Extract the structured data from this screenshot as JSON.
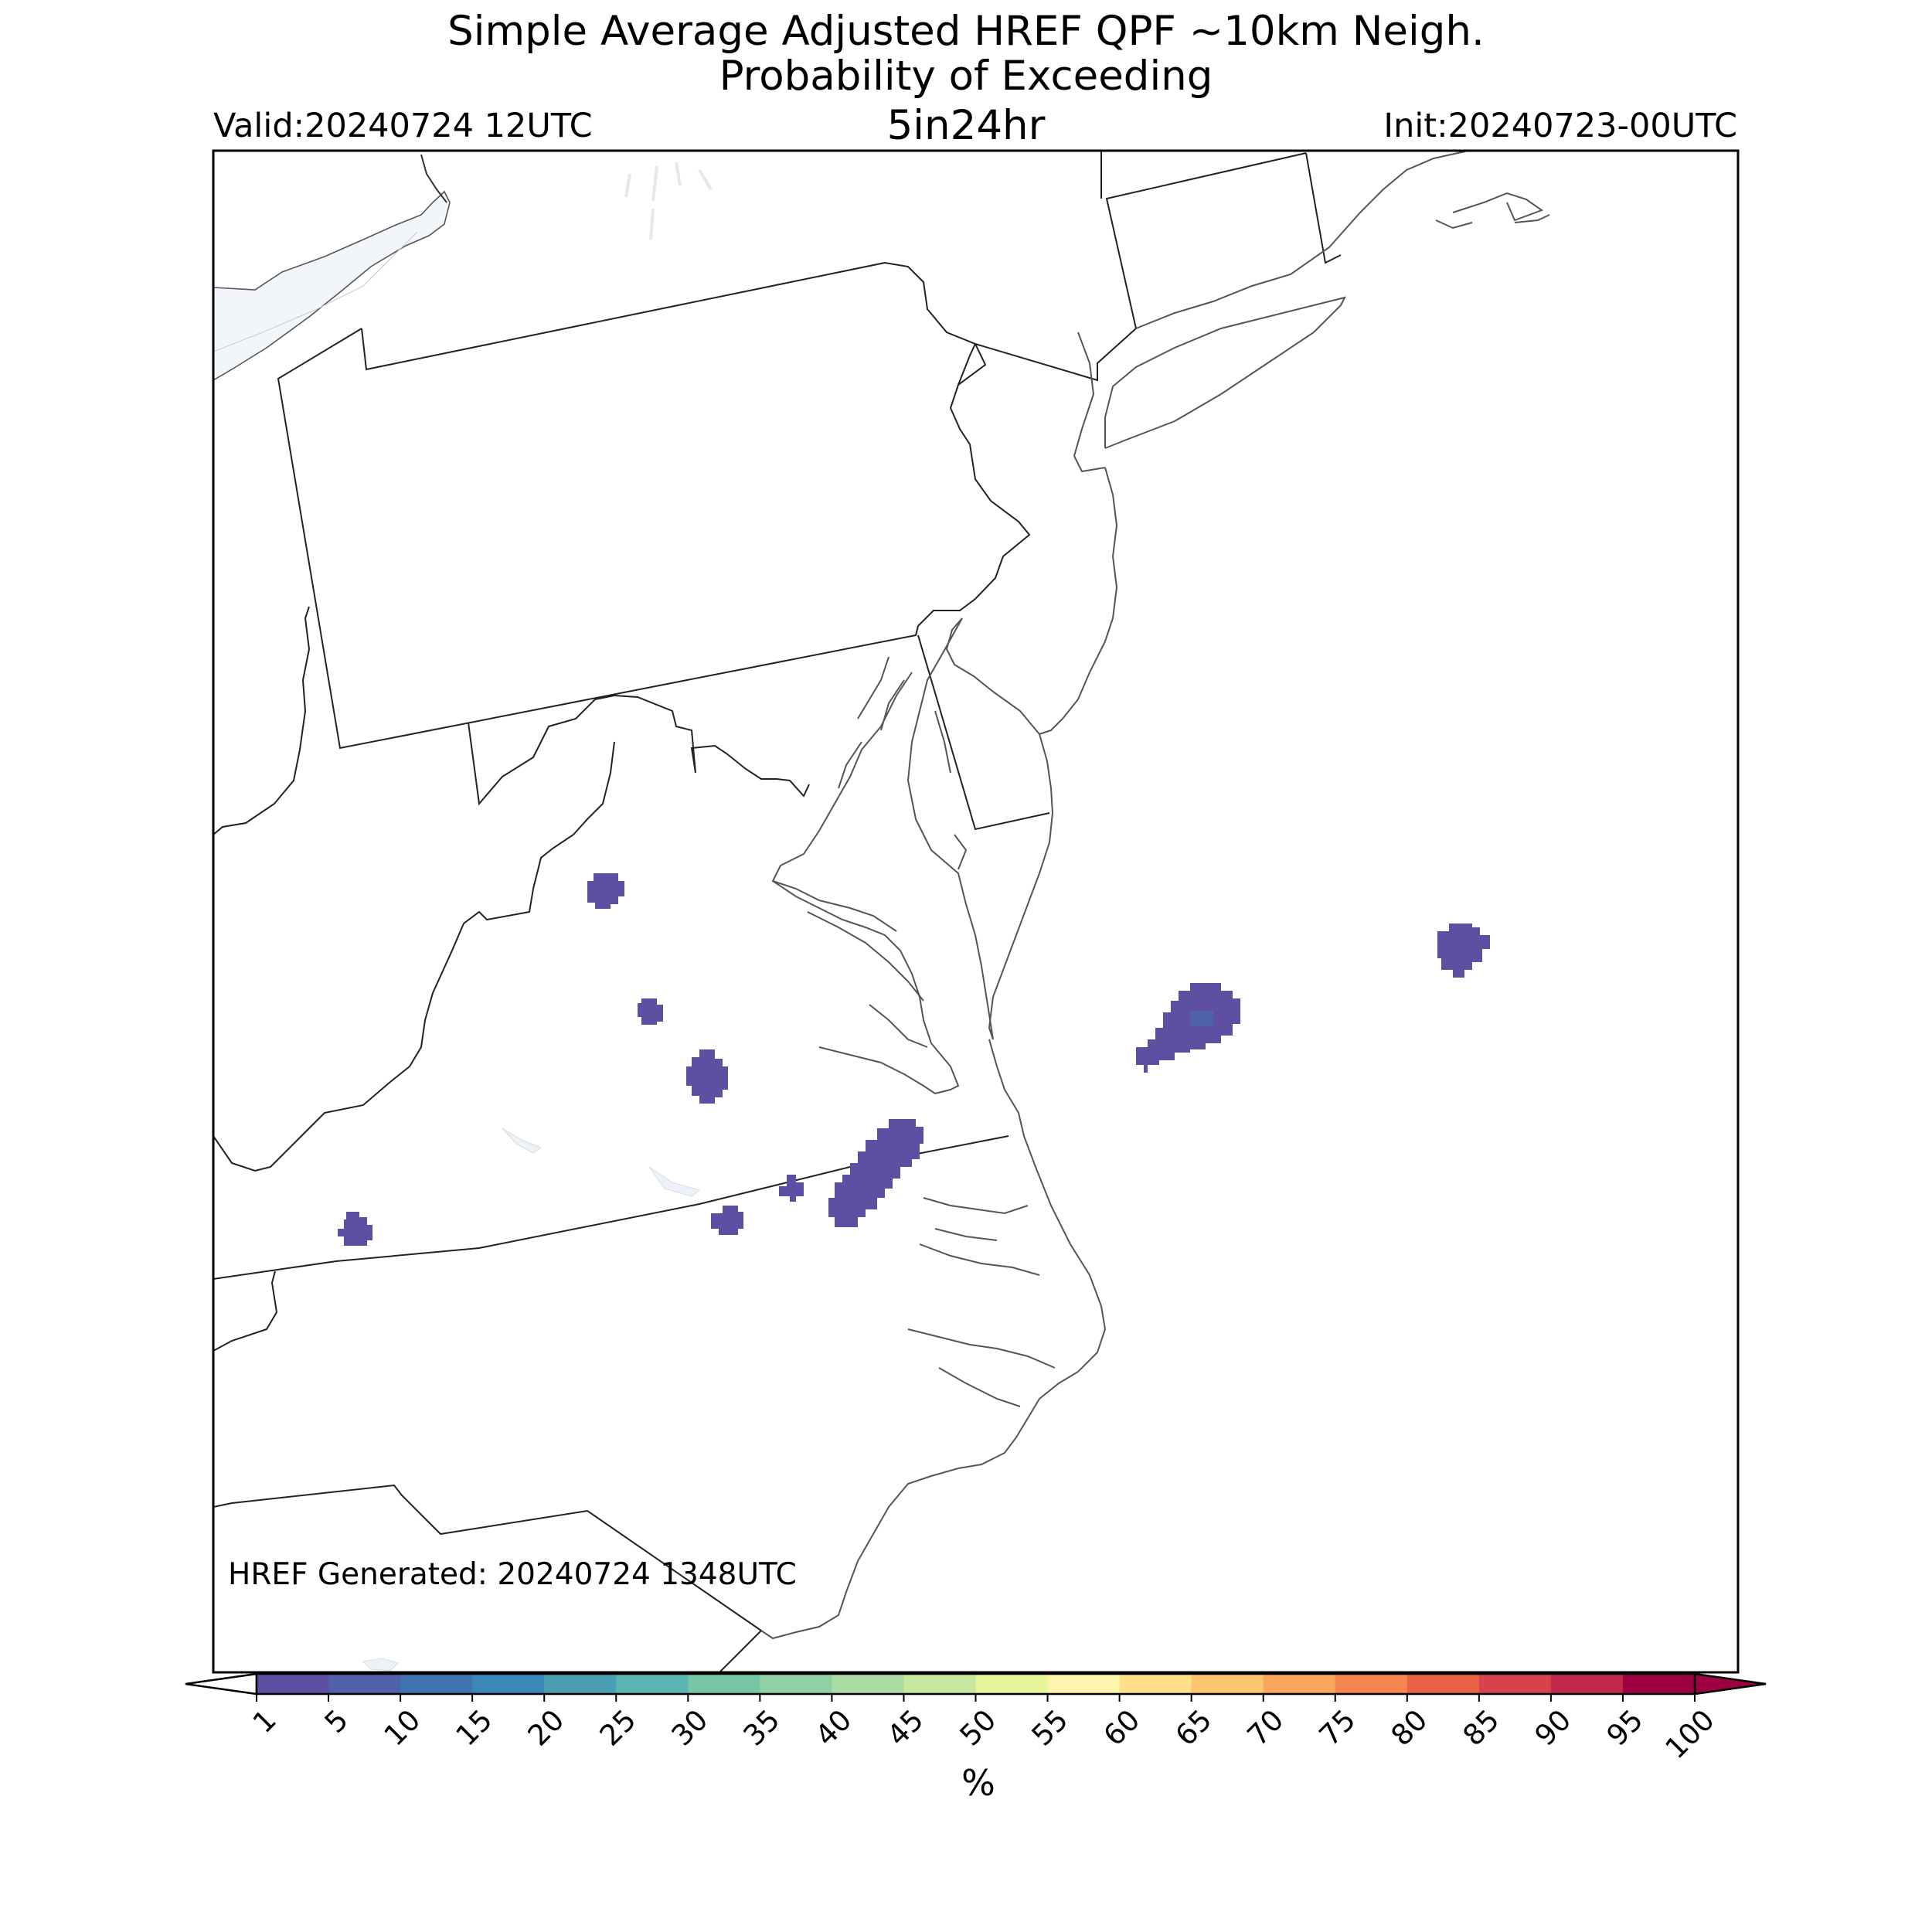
{
  "header": {
    "title_line1": "Simple Average Adjusted HREF QPF ~10km Neigh.",
    "title_line2": "Probability of Exceeding",
    "title_line3": "5in24hr",
    "valid": "Valid:20240724 12UTC",
    "init": "Init:20240723-00UTC"
  },
  "map": {
    "region": "Mid-Atlantic United States",
    "background": "#ffffff",
    "border_color": "#000000",
    "lake_fill": "#f2f6fb"
  },
  "footer": {
    "generated": "HREF Generated: 20240724 1348UTC"
  },
  "colorbar": {
    "label": "%",
    "ticks": [
      "1",
      "5",
      "10",
      "15",
      "20",
      "25",
      "30",
      "35",
      "40",
      "45",
      "50",
      "55",
      "60",
      "65",
      "70",
      "75",
      "80",
      "85",
      "90",
      "95",
      "100"
    ],
    "colors": [
      "#5e4fa2",
      "#4f61aa",
      "#3f73b2",
      "#3b88b6",
      "#4b9fb3",
      "#5bb5b0",
      "#74c6a5",
      "#8fd0a4",
      "#aadda3",
      "#c6e89f",
      "#e6f598",
      "#fdf5ab",
      "#fee08b",
      "#fdc56e",
      "#fca55d",
      "#f68550",
      "#ea6344",
      "#d8424d",
      "#c0294b",
      "#9e0142"
    ],
    "under_color": "#ffffff",
    "over_color": "#9e0142"
  },
  "probability_areas": [
    {
      "name": "west-virginia-east",
      "level": "1-5%",
      "color": "#5e4fa2"
    },
    {
      "name": "virginia-central-small",
      "level": "1-5%",
      "color": "#5e4fa2"
    },
    {
      "name": "virginia-piedmont",
      "level": "1-5%",
      "color": "#5e4fa2"
    },
    {
      "name": "virginia-southwest",
      "level": "1-5%",
      "color": "#5e4fa2"
    },
    {
      "name": "virginia-southside",
      "level": "1-5%",
      "color": "#5e4fa2"
    },
    {
      "name": "virginia-nc-border-small",
      "level": "1-5%",
      "color": "#5e4fa2"
    },
    {
      "name": "virginia-nc-border-large",
      "level": "1-5%",
      "color": "#5e4fa2"
    },
    {
      "name": "atlantic-offshore-delmarva",
      "level": "1-5%",
      "color": "#5e4fa2",
      "core_level": "5-10%",
      "core_color": "#4f61aa"
    },
    {
      "name": "atlantic-far-offshore",
      "level": "1-5%",
      "color": "#5e4fa2"
    }
  ]
}
